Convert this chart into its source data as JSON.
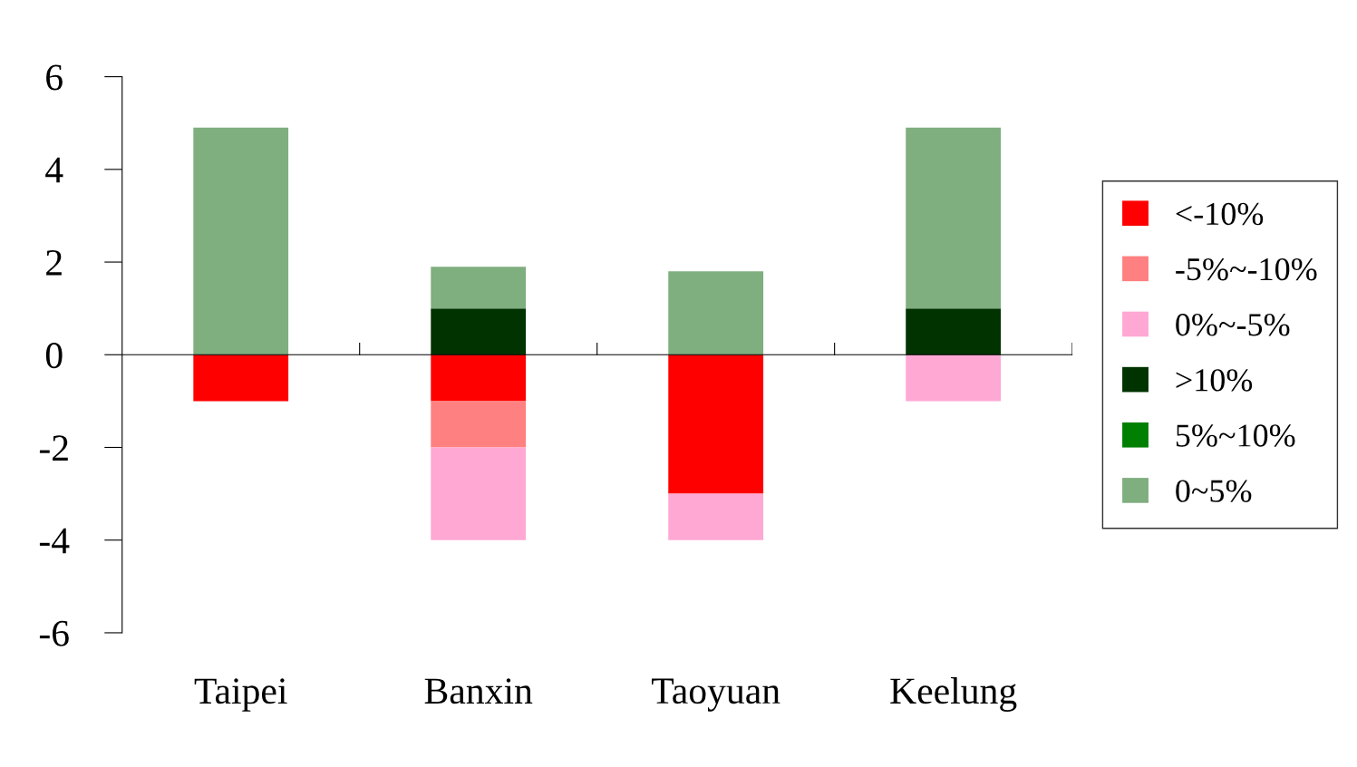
{
  "chart_data": {
    "type": "bar",
    "stacked": true,
    "categories": [
      "Taipei",
      "Banxin",
      "Taoyuan",
      "Keelung"
    ],
    "series": [
      {
        "name": "<-10%",
        "color": "#ff0000",
        "values": [
          -1,
          -1,
          -3,
          0
        ]
      },
      {
        "name": "-5%~-10%",
        "color": "#ff8080",
        "values": [
          0,
          -1,
          0,
          0
        ]
      },
      {
        "name": "0%~-5%",
        "color": "#ffa8d4",
        "values": [
          0,
          -2,
          -1,
          -1
        ]
      },
      {
        "name": ">10%",
        "color": "#003300",
        "values": [
          0,
          1,
          0,
          1
        ]
      },
      {
        "name": "5%~10%",
        "color": "#008000",
        "values": [
          0,
          0,
          0,
          0
        ]
      },
      {
        "name": "0~5%",
        "color": "#7fae7f",
        "values": [
          4.9,
          0.9,
          1.8,
          3.9
        ]
      }
    ],
    "ylim": [
      -6,
      6
    ],
    "yticks": [
      6,
      4,
      2,
      0,
      -2,
      -4,
      -6
    ],
    "legend": "right"
  }
}
